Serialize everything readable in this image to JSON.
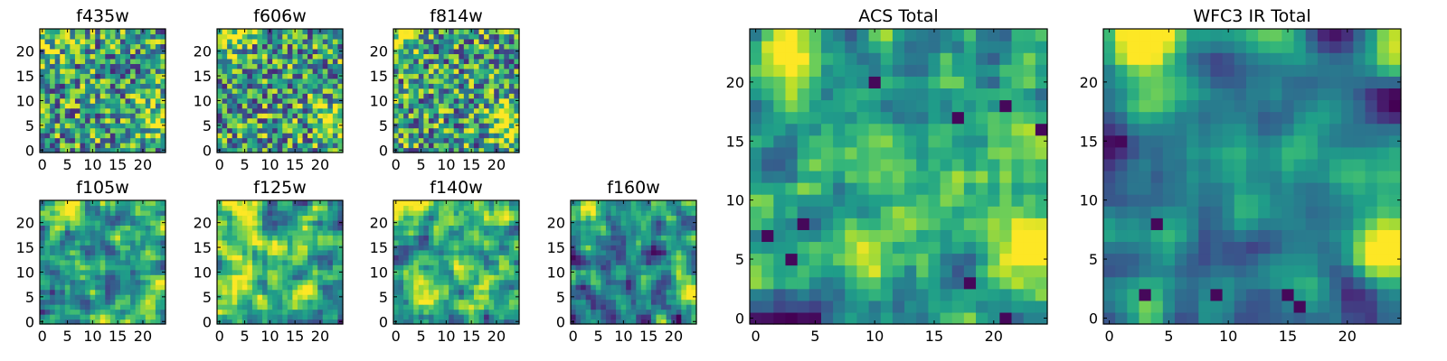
{
  "chart_data": [
    {
      "id": "f435w",
      "type": "heatmap",
      "title": "f435w",
      "grid_size": 25,
      "xlim": [
        0,
        24
      ],
      "ylim": [
        0,
        24
      ],
      "xticks": [
        0,
        5,
        10,
        15,
        20
      ],
      "yticks": [
        0,
        5,
        10,
        15,
        20
      ],
      "colormap": "viridis",
      "seed": 11,
      "bright_spots": [
        {
          "x": 22.5,
          "y": 6,
          "amp": 0.45,
          "r": 2.2
        },
        {
          "x": 2,
          "y": 23.5,
          "amp": 0.25,
          "r": 2.5
        }
      ],
      "noise": 0.55
    },
    {
      "id": "f606w",
      "type": "heatmap",
      "title": "f606w",
      "grid_size": 25,
      "xlim": [
        0,
        24
      ],
      "ylim": [
        0,
        24
      ],
      "xticks": [
        0,
        5,
        10,
        15,
        20
      ],
      "yticks": [
        0,
        5,
        10,
        15,
        20
      ],
      "colormap": "viridis",
      "seed": 23,
      "bright_spots": [
        {
          "x": 22.5,
          "y": 6,
          "amp": 0.5,
          "r": 2.2
        },
        {
          "x": 2.5,
          "y": 23.5,
          "amp": 0.35,
          "r": 2.5
        }
      ],
      "noise": 0.55
    },
    {
      "id": "f814w",
      "type": "heatmap",
      "title": "f814w",
      "grid_size": 25,
      "xlim": [
        0,
        24
      ],
      "ylim": [
        0,
        24
      ],
      "xticks": [
        0,
        5,
        10,
        15,
        20
      ],
      "yticks": [
        0,
        5,
        10,
        15,
        20
      ],
      "colormap": "viridis",
      "seed": 37,
      "bright_spots": [
        {
          "x": 22,
          "y": 6,
          "amp": 0.5,
          "r": 2.4
        },
        {
          "x": 2,
          "y": 23.5,
          "amp": 0.3,
          "r": 2.5
        }
      ],
      "noise": 0.55
    },
    {
      "id": "f105w",
      "type": "heatmap",
      "title": "f105w",
      "grid_size": 25,
      "xlim": [
        0,
        24
      ],
      "ylim": [
        0,
        24
      ],
      "xticks": [
        0,
        5,
        10,
        15,
        20
      ],
      "yticks": [
        0,
        5,
        10,
        15,
        20
      ],
      "colormap": "viridis",
      "seed": 41,
      "bright_spots": [
        {
          "x": 4,
          "y": 23.5,
          "amp": 0.4,
          "r": 2.5
        },
        {
          "x": 22,
          "y": 6,
          "amp": 0.2,
          "r": 2.5
        }
      ],
      "noise": 0.5,
      "smooth": 1
    },
    {
      "id": "f125w",
      "type": "heatmap",
      "title": "f125w",
      "grid_size": 25,
      "xlim": [
        0,
        24
      ],
      "ylim": [
        0,
        24
      ],
      "xticks": [
        0,
        5,
        10,
        15,
        20
      ],
      "yticks": [
        0,
        5,
        10,
        15,
        20
      ],
      "colormap": "viridis",
      "seed": 53,
      "bright_spots": [
        {
          "x": 3,
          "y": 23.5,
          "amp": 0.3,
          "r": 2.5
        }
      ],
      "noise": 0.5,
      "smooth": 1,
      "bias": 0.12
    },
    {
      "id": "f140w",
      "type": "heatmap",
      "title": "f140w",
      "grid_size": 25,
      "xlim": [
        0,
        24
      ],
      "ylim": [
        0,
        24
      ],
      "xticks": [
        0,
        5,
        10,
        15,
        20
      ],
      "yticks": [
        0,
        5,
        10,
        15,
        20
      ],
      "colormap": "viridis",
      "seed": 67,
      "bright_spots": [
        {
          "x": 2,
          "y": 23.5,
          "amp": 0.35,
          "r": 2.5
        }
      ],
      "noise": 0.5,
      "smooth": 1,
      "bias": 0.1
    },
    {
      "id": "f160w",
      "type": "heatmap",
      "title": "f160w",
      "grid_size": 25,
      "xlim": [
        0,
        24
      ],
      "ylim": [
        0,
        24
      ],
      "xticks": [
        0,
        5,
        10,
        15,
        20
      ],
      "yticks": [
        0,
        5,
        10,
        15,
        20
      ],
      "colormap": "viridis",
      "seed": 79,
      "bright_spots": [
        {
          "x": 2,
          "y": 23.5,
          "amp": 0.45,
          "r": 2.5
        },
        {
          "x": 23,
          "y": 7,
          "amp": 0.35,
          "r": 2.2
        }
      ],
      "noise": 0.5,
      "smooth": 1,
      "bias": -0.08
    },
    {
      "id": "acs_total",
      "type": "heatmap",
      "title": "ACS Total",
      "grid_size": 25,
      "xlim": [
        0,
        24
      ],
      "ylim": [
        0,
        24
      ],
      "xticks": [
        0,
        5,
        10,
        15,
        20
      ],
      "yticks": [
        0,
        5,
        10,
        15,
        20
      ],
      "colormap": "viridis",
      "seed": 97,
      "bright_spots": [
        {
          "x": 22.5,
          "y": 6,
          "amp": 0.55,
          "r": 2.3
        },
        {
          "x": 2.5,
          "y": 22.5,
          "amp": 0.4,
          "r": 2.8
        },
        {
          "x": 12,
          "y": 11,
          "amp": 0.15,
          "r": 2
        }
      ],
      "noise": 0.4,
      "smooth": 1,
      "bias": 0.0,
      "dark_spots": [
        {
          "x": 3,
          "y": 5
        },
        {
          "x": 1,
          "y": 7
        },
        {
          "x": 4,
          "y": 8
        },
        {
          "x": 17,
          "y": 17
        },
        {
          "x": 21,
          "y": 18
        },
        {
          "x": 21,
          "y": 0
        },
        {
          "x": 24,
          "y": 16
        },
        {
          "x": 10,
          "y": 20
        },
        {
          "x": 18,
          "y": 3
        }
      ]
    },
    {
      "id": "wfc3_ir_total",
      "type": "heatmap",
      "title": "WFC3 IR Total",
      "grid_size": 25,
      "xlim": [
        0,
        24
      ],
      "ylim": [
        0,
        24
      ],
      "xticks": [
        0,
        5,
        10,
        15,
        20
      ],
      "yticks": [
        0,
        5,
        10,
        15,
        20
      ],
      "colormap": "viridis",
      "seed": 113,
      "bright_spots": [
        {
          "x": 3,
          "y": 23.5,
          "amp": 0.6,
          "r": 3
        },
        {
          "x": 23,
          "y": 6,
          "amp": 0.45,
          "r": 2.2
        }
      ],
      "noise": 0.3,
      "smooth": 2,
      "bias": -0.12,
      "dark_spots": [
        {
          "x": 1,
          "y": 15
        },
        {
          "x": 16,
          "y": 1
        },
        {
          "x": 15,
          "y": 2
        },
        {
          "x": 3,
          "y": 2
        },
        {
          "x": 4,
          "y": 8
        },
        {
          "x": 9,
          "y": 2
        }
      ]
    }
  ]
}
